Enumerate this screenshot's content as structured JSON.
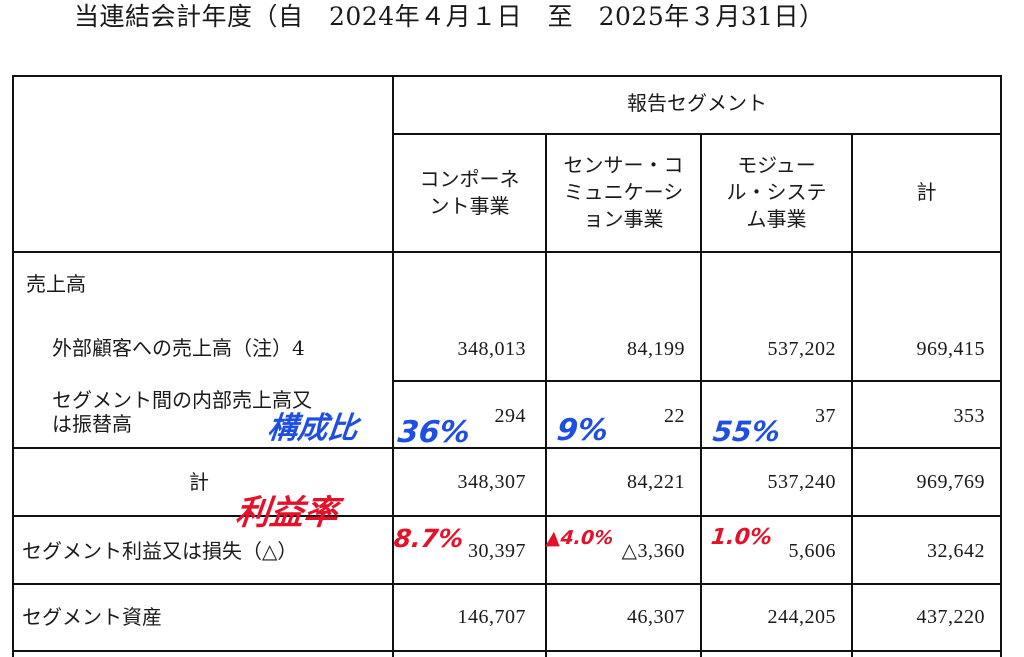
{
  "period_title": "当連結会計年度（自　2024年４月１日　至　2025年３月31日）",
  "table": {
    "group_header": "報告セグメント",
    "columns": [
      "コンポーネ\nント事業",
      "センサー・コ\nミュニケーシ\nョン事業",
      "モジュー\nル・システ\nム事業",
      "計"
    ],
    "rows": [
      {
        "label": "売上高",
        "values": [
          "",
          "",
          "",
          ""
        ]
      },
      {
        "label": "外部顧客への売上高（注）4",
        "values": [
          "348,013",
          "84,199",
          "537,202",
          "969,415"
        ]
      },
      {
        "label": "セグメント間の内部売上高又\nは振替高",
        "values": [
          "294",
          "22",
          "37",
          "353"
        ]
      },
      {
        "label": "計",
        "values": [
          "348,307",
          "84,221",
          "537,240",
          "969,769"
        ]
      },
      {
        "label": "セグメント利益又は損失（△）",
        "values": [
          "30,397",
          "△3,360",
          "5,606",
          "32,642"
        ]
      },
      {
        "label": "セグメント資産",
        "values": [
          "146,707",
          "46,307",
          "244,205",
          "437,220"
        ]
      }
    ]
  },
  "annotations": {
    "composition_label": "構成比",
    "composition": [
      "36%",
      "9%",
      "55%"
    ],
    "profit_label": "利益率",
    "profit": [
      "8.7%",
      "▲4.0%",
      "1.0%"
    ],
    "colors": {
      "blue": "#1f4fe0",
      "red": "#e3122a"
    }
  }
}
